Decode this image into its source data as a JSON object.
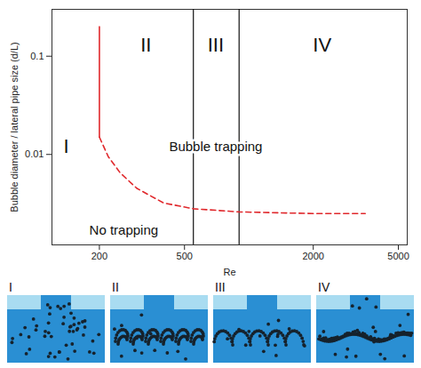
{
  "chart_data": {
    "type": "line",
    "x_label": "Re",
    "y_label": "Bubble diameter / lateral pipe size (d/L)",
    "log": true,
    "grid": false,
    "xlim": [
      120,
      5500
    ],
    "ylim": [
      0.0012,
      0.3
    ],
    "xticks": [
      200,
      500,
      2000,
      5000
    ],
    "yticks": [
      0.01,
      0.1
    ],
    "series": [
      {
        "color": "#e0282c",
        "line_style": "solid",
        "x": [
          200,
          200
        ],
        "values": [
          0.015,
          0.2
        ]
      },
      {
        "color": "#e0282c",
        "line_style": "dashed",
        "x": [
          200,
          220,
          250,
          300,
          400,
          550,
          900,
          2000,
          3500
        ],
        "values": [
          0.015,
          0.0095,
          0.0065,
          0.0045,
          0.0032,
          0.0028,
          0.0026,
          0.0025,
          0.0025
        ]
      }
    ],
    "regime_boundaries": [
      550,
      900
    ],
    "regions": [
      {
        "label": "I",
        "x": 140,
        "y": 0.012
      },
      {
        "label": "II",
        "x": 330,
        "y": 0.13
      },
      {
        "label": "III",
        "x": 700,
        "y": 0.13
      },
      {
        "label": "IV",
        "x": 2200,
        "y": 0.13
      }
    ],
    "annotations": [
      {
        "text": "Bubble trapping",
        "x": 700,
        "y": 0.012
      },
      {
        "text": "No trapping",
        "x": 260,
        "y": 0.0017
      }
    ]
  },
  "illustrations": {
    "labels": [
      "I",
      "II",
      "III",
      "IV"
    ]
  }
}
